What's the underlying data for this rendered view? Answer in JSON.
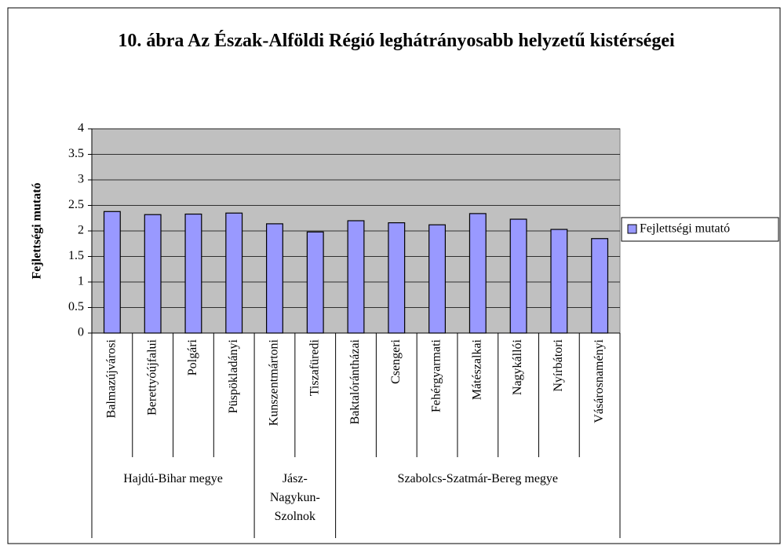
{
  "chart_data": {
    "type": "bar",
    "title": "10. ábra Az Észak-Alföldi Régió leghátrányosabb helyzetű kistérségei",
    "ylabel": "Fejlettségi mutató",
    "groups": [
      {
        "name": "Hajdú-Bihar megye",
        "categories": [
          "Balmazújvárosi",
          "Berettyóújfalui",
          "Polgári",
          "Püspökladányi"
        ]
      },
      {
        "name": "Jász-Nagykun-Szolnok",
        "categories": [
          "Kunszentmártoni",
          "Tiszafüredi"
        ]
      },
      {
        "name": "Szabolcs-Szatmár-Bereg megye",
        "categories": [
          "Baktalórántházai",
          "Csengeri",
          "Fehérgyarmati",
          "Mátészalkai",
          "Nagykállói",
          "Nyírbátori",
          "Vásárosnaményi"
        ]
      }
    ],
    "series": [
      {
        "name": "Fejlettségi mutató",
        "color": "#9999ff",
        "values": [
          2.38,
          2.32,
          2.33,
          2.35,
          2.14,
          1.98,
          2.2,
          2.16,
          2.12,
          2.34,
          2.23,
          2.03,
          1.85
        ]
      }
    ],
    "ylim": [
      0,
      4
    ],
    "yticks": [
      0,
      0.5,
      1,
      1.5,
      2,
      2.5,
      3,
      3.5,
      4
    ],
    "grid": true,
    "plot_background": "#c0c0c0",
    "legend": "right"
  }
}
